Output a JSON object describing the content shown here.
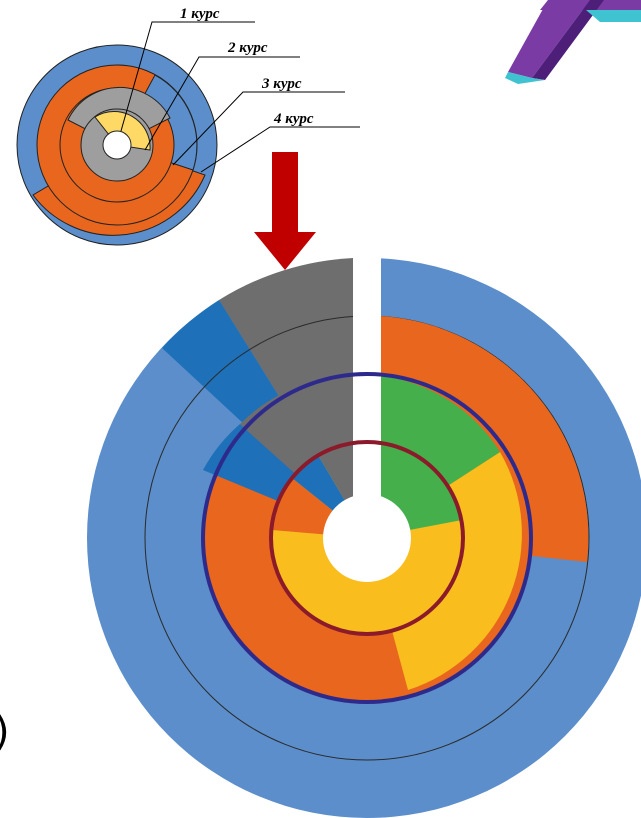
{
  "labels": {
    "course_1": "1 курс",
    "course_2": "2 курс",
    "course_3": "3 курс",
    "course_4": "4 курс"
  },
  "edge_glyph": ")",
  "colors": {
    "blue": "#5B8ECA",
    "dark_blue": "#1E70B8",
    "orange": "#E8661E",
    "grey": "#6E6E6E",
    "light_grey": "#9E9E9E",
    "green": "#45AF4C",
    "yellow": "#F9BD1E",
    "light_yellow": "#FFD966",
    "red_arrow": "#C00000",
    "ring_navy": "#2E2A8C",
    "ring_maroon": "#8B1A2B",
    "logo_purple": "#7A3BA5",
    "logo_purple_dark": "#4E1F78",
    "logo_cyan": "#3FC3D0"
  },
  "icons": {
    "logo": "logo-3d-shape-icon",
    "arrow": "down-arrow-icon"
  }
}
